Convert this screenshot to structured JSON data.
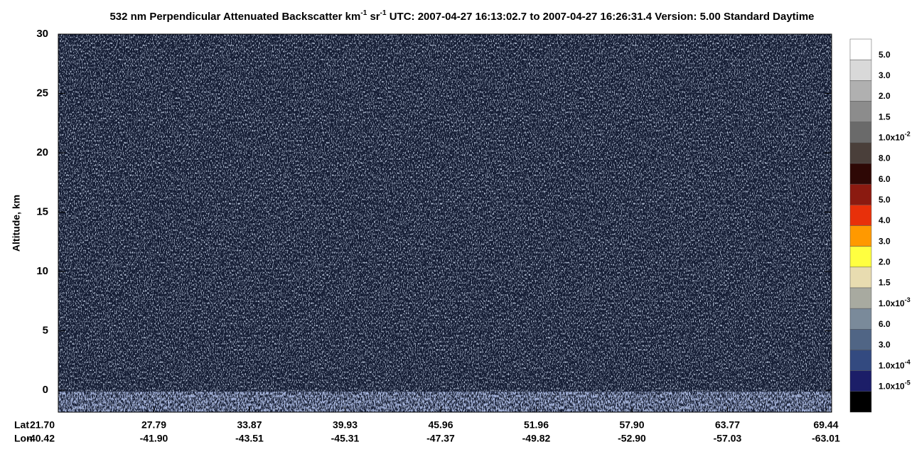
{
  "chart_data": {
    "type": "curtain",
    "title": [
      {
        "text": "532 nm Perpendicular Attenuated Backscatter km",
        "sup": false
      },
      {
        "text": "-1",
        "sup": true
      },
      {
        "text": " sr",
        "sup": false
      },
      {
        "text": "-1",
        "sup": true
      },
      {
        "text": "  UTC: 2007-04-27 16:13:02.7 to 2007-04-27 16:26:31.4  Version: 5.00 Standard Daytime",
        "sup": false
      }
    ],
    "y_label": "Altitude, km",
    "ylim": [
      -1.85,
      30
    ],
    "yticks": [
      0,
      5,
      10,
      15,
      20,
      25,
      30
    ],
    "x_rows": [
      {
        "name": "Lat",
        "labels": [
          "21.70",
          "27.79",
          "33.87",
          "39.93",
          "45.96",
          "51.96",
          "57.90",
          "63.77",
          "69.44"
        ]
      },
      {
        "name": "Lon",
        "labels": [
          "-40.42",
          "-41.90",
          "-43.51",
          "-45.31",
          "-47.37",
          "-49.82",
          "-52.90",
          "-57.03",
          "-63.01"
        ]
      }
    ],
    "colorbar": {
      "colors": [
        "#ffffff",
        "#d9d9d9",
        "#b0b0b0",
        "#8c8c8c",
        "#6a6a6a",
        "#4a3f3a",
        "#2e0805",
        "#8b1a10",
        "#e8300a",
        "#ff9900",
        "#ffff40",
        "#e8dcb0",
        "#a8aaa0",
        "#7a8a9a",
        "#506585",
        "#334a80",
        "#1c1e68",
        "#000000"
      ],
      "labels": [
        {
          "text": "5.0"
        },
        {
          "text": "3.0"
        },
        {
          "text": "2.0"
        },
        {
          "text": "1.5"
        },
        {
          "text": "1.0x10",
          "exp": "-2"
        },
        {
          "text": "8.0"
        },
        {
          "text": "6.0"
        },
        {
          "text": "5.0"
        },
        {
          "text": "4.0"
        },
        {
          "text": "3.0"
        },
        {
          "text": "2.0"
        },
        {
          "text": "1.5"
        },
        {
          "text": "1.0x10",
          "exp": "-3"
        },
        {
          "text": "6.0"
        },
        {
          "text": "3.0"
        },
        {
          "text": "1.0x10",
          "exp": "-4"
        },
        {
          "text": "1.0x10",
          "exp": "-5"
        }
      ]
    }
  }
}
